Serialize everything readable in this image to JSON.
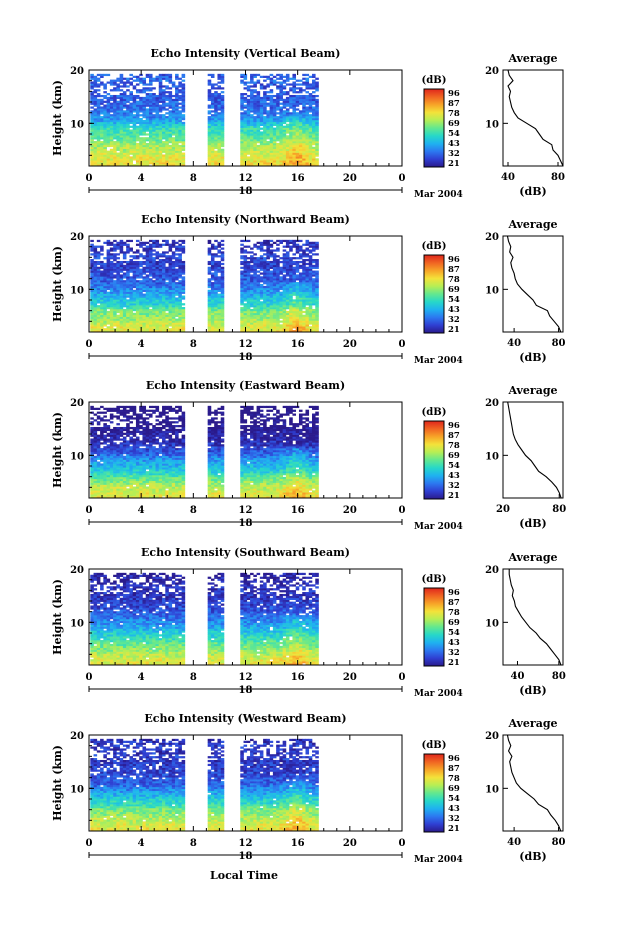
{
  "figure": {
    "x_axis_label": "Local Time",
    "date_label": "Mar 2004"
  },
  "colorbar": {
    "unit": "(dB)",
    "ticks": [
      "96",
      "87",
      "78",
      "69",
      "54",
      "43",
      "32",
      "21"
    ],
    "colors": [
      "#2a1a8c",
      "#2f3fd2",
      "#2c78f0",
      "#1fb2f0",
      "#27d8c8",
      "#63e88f",
      "#b6ee55",
      "#f4e23a",
      "#f7a428",
      "#f06422",
      "#e0261c"
    ]
  },
  "chart_data": [
    {
      "type": "heatmap",
      "title": "Echo Intensity (Vertical Beam)",
      "ylabel": "Height (km)",
      "xlim": [
        0,
        24
      ],
      "ylim": [
        2,
        20
      ],
      "x_ticks": [
        "0",
        "4",
        "8",
        "12",
        "16",
        "20",
        "0"
      ],
      "y_ticks": [
        "20",
        "10"
      ],
      "day_label": "18",
      "value_unit": "dB",
      "data_gaps_hours": [
        [
          7.3,
          9.1
        ],
        [
          10.2,
          11.5
        ],
        [
          17.5,
          24
        ]
      ],
      "profile": {
        "title": "Average",
        "xlabel": "(dB)",
        "xlim": [
          36,
          84
        ],
        "x_ticks": [
          "40",
          "80"
        ],
        "ylim": [
          2,
          20
        ],
        "y_ticks": [
          "20",
          "10"
        ],
        "points": [
          [
            84,
            2
          ],
          [
            82,
            3
          ],
          [
            80,
            4
          ],
          [
            76,
            5
          ],
          [
            75,
            6
          ],
          [
            68,
            7
          ],
          [
            65,
            8
          ],
          [
            62,
            9
          ],
          [
            55,
            10
          ],
          [
            48,
            11
          ],
          [
            45,
            12
          ],
          [
            43,
            13
          ],
          [
            42,
            14
          ],
          [
            41,
            15
          ],
          [
            42,
            16
          ],
          [
            40,
            17
          ],
          [
            44,
            18
          ],
          [
            41,
            19
          ],
          [
            40,
            20
          ]
        ]
      }
    },
    {
      "type": "heatmap",
      "title": "Echo Intensity (Northward Beam)",
      "ylabel": "Height (km)",
      "xlim": [
        0,
        24
      ],
      "ylim": [
        2,
        20
      ],
      "x_ticks": [
        "0",
        "4",
        "8",
        "12",
        "16",
        "20",
        "0"
      ],
      "y_ticks": [
        "20",
        "10"
      ],
      "day_label": "18",
      "value_unit": "dB",
      "data_gaps_hours": [
        [
          7.3,
          9.1
        ],
        [
          10.2,
          11.5
        ],
        [
          17.5,
          24
        ]
      ],
      "profile": {
        "title": "Average",
        "xlabel": "(dB)",
        "xlim": [
          30,
          84
        ],
        "x_ticks": [
          "40",
          "80"
        ],
        "ylim": [
          2,
          20
        ],
        "y_ticks": [
          "20",
          "10"
        ],
        "points": [
          [
            82,
            2
          ],
          [
            80,
            3
          ],
          [
            76,
            4
          ],
          [
            72,
            5
          ],
          [
            70,
            6
          ],
          [
            60,
            7
          ],
          [
            57,
            8
          ],
          [
            52,
            9
          ],
          [
            47,
            10
          ],
          [
            43,
            11
          ],
          [
            41,
            12
          ],
          [
            40,
            13
          ],
          [
            38,
            14
          ],
          [
            37,
            15
          ],
          [
            39,
            16
          ],
          [
            36,
            17
          ],
          [
            37,
            18
          ],
          [
            35,
            19
          ],
          [
            34,
            20
          ]
        ]
      }
    },
    {
      "type": "heatmap",
      "title": "Echo Intensity (Eastward Beam)",
      "ylabel": "Height (km)",
      "xlim": [
        0,
        24
      ],
      "ylim": [
        2,
        20
      ],
      "x_ticks": [
        "0",
        "4",
        "8",
        "12",
        "16",
        "20",
        "0"
      ],
      "y_ticks": [
        "20",
        "10"
      ],
      "day_label": "18",
      "value_unit": "dB",
      "data_gaps_hours": [
        [
          7.3,
          9.1
        ],
        [
          10.2,
          11.5
        ],
        [
          17.5,
          24
        ]
      ],
      "profile": {
        "title": "Average",
        "xlabel": "(dB)",
        "xlim": [
          20,
          84
        ],
        "x_ticks": [
          "20",
          "80"
        ],
        "ylim": [
          2,
          20
        ],
        "y_ticks": [
          "20",
          "10"
        ],
        "points": [
          [
            82,
            2
          ],
          [
            80,
            3
          ],
          [
            77,
            4
          ],
          [
            72,
            5
          ],
          [
            66,
            6
          ],
          [
            58,
            7
          ],
          [
            54,
            8
          ],
          [
            50,
            9
          ],
          [
            44,
            10
          ],
          [
            40,
            11
          ],
          [
            36,
            12
          ],
          [
            33,
            13
          ],
          [
            31,
            14
          ],
          [
            30,
            15
          ],
          [
            29,
            16
          ],
          [
            28,
            17
          ],
          [
            27,
            18
          ],
          [
            26,
            19
          ],
          [
            25,
            20
          ]
        ]
      }
    },
    {
      "type": "heatmap",
      "title": "Echo Intensity (Southward Beam)",
      "ylabel": "Height (km)",
      "xlim": [
        0,
        24
      ],
      "ylim": [
        2,
        20
      ],
      "x_ticks": [
        "0",
        "4",
        "8",
        "12",
        "16",
        "20",
        "0"
      ],
      "y_ticks": [
        "20",
        "10"
      ],
      "day_label": "18",
      "value_unit": "dB",
      "data_gaps_hours": [
        [
          7.3,
          9.1
        ],
        [
          10.2,
          11.5
        ],
        [
          17.5,
          24
        ]
      ],
      "profile": {
        "title": "Average",
        "xlabel": "(dB)",
        "xlim": [
          26,
          84
        ],
        "x_ticks": [
          "40",
          "80"
        ],
        "ylim": [
          2,
          20
        ],
        "y_ticks": [
          "20",
          "10"
        ],
        "points": [
          [
            82,
            2
          ],
          [
            80,
            3
          ],
          [
            76,
            4
          ],
          [
            72,
            5
          ],
          [
            68,
            6
          ],
          [
            62,
            7
          ],
          [
            58,
            8
          ],
          [
            52,
            9
          ],
          [
            48,
            10
          ],
          [
            44,
            11
          ],
          [
            41,
            12
          ],
          [
            38,
            13
          ],
          [
            37,
            14
          ],
          [
            35,
            15
          ],
          [
            36,
            16
          ],
          [
            34,
            17
          ],
          [
            33,
            18
          ],
          [
            32,
            19
          ],
          [
            32,
            20
          ]
        ]
      }
    },
    {
      "type": "heatmap",
      "title": "Echo Intensity (Westward Beam)",
      "ylabel": "Height (km)",
      "xlim": [
        0,
        24
      ],
      "ylim": [
        2,
        20
      ],
      "x_ticks": [
        "0",
        "4",
        "8",
        "12",
        "16",
        "20",
        "0"
      ],
      "y_ticks": [
        "20",
        "10"
      ],
      "day_label": "18",
      "value_unit": "dB",
      "data_gaps_hours": [
        [
          7.3,
          9.1
        ],
        [
          10.2,
          11.5
        ],
        [
          17.5,
          24
        ]
      ],
      "profile": {
        "title": "Average",
        "xlabel": "(dB)",
        "xlim": [
          30,
          84
        ],
        "x_ticks": [
          "40",
          "80"
        ],
        "ylim": [
          2,
          20
        ],
        "y_ticks": [
          "20",
          "10"
        ],
        "points": [
          [
            82,
            2
          ],
          [
            80,
            3
          ],
          [
            77,
            4
          ],
          [
            73,
            5
          ],
          [
            70,
            6
          ],
          [
            62,
            7
          ],
          [
            58,
            8
          ],
          [
            52,
            9
          ],
          [
            46,
            10
          ],
          [
            42,
            11
          ],
          [
            40,
            12
          ],
          [
            38,
            13
          ],
          [
            37,
            14
          ],
          [
            36,
            15
          ],
          [
            38,
            16
          ],
          [
            35,
            17
          ],
          [
            37,
            18
          ],
          [
            35,
            19
          ],
          [
            34,
            20
          ]
        ]
      }
    }
  ]
}
